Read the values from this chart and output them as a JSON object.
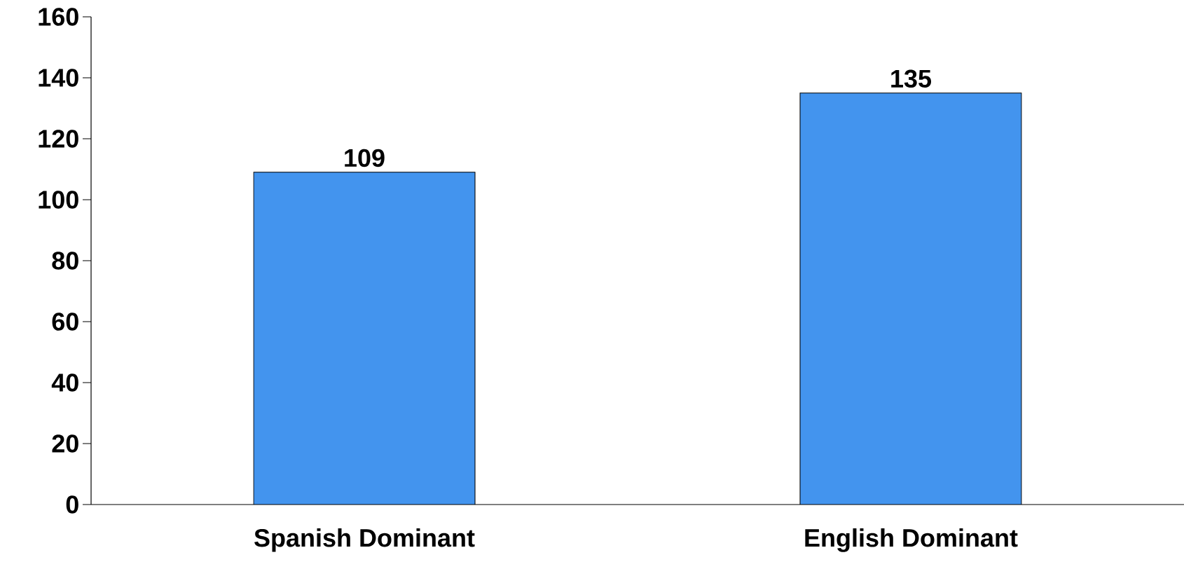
{
  "chart_data": {
    "type": "bar",
    "categories": [
      "Spanish Dominant",
      "English Dominant"
    ],
    "values": [
      109,
      135
    ],
    "color": "#4394ee",
    "ylim": [
      0,
      160
    ],
    "yticks": [
      0,
      20,
      40,
      60,
      80,
      100,
      120,
      140,
      160
    ],
    "data_labels": true,
    "grid": false
  }
}
